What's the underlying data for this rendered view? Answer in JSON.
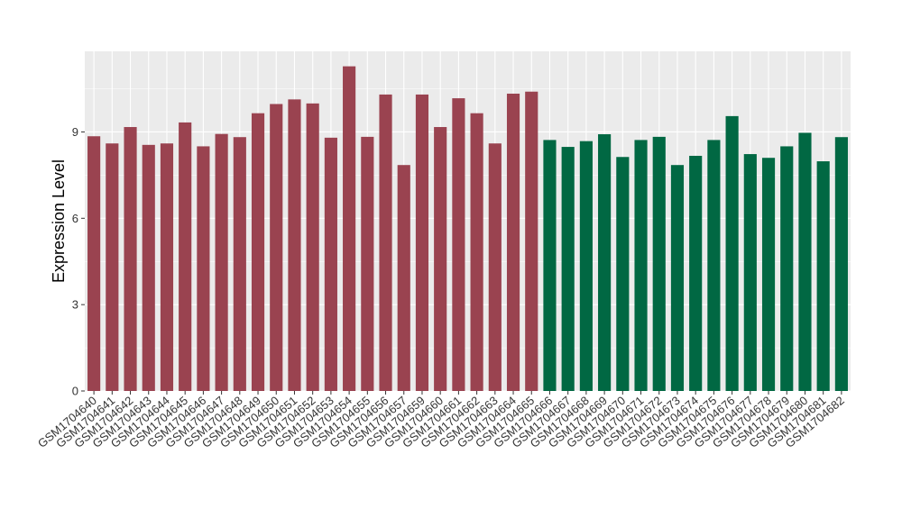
{
  "chart_data": {
    "type": "bar",
    "title": "",
    "xlabel": "",
    "ylabel": "Expression Level",
    "ylim": [
      0,
      11.8
    ],
    "yticks": [
      0,
      3,
      6,
      9
    ],
    "grid": true,
    "legend": "none",
    "colors": {
      "panel_background": "#ebebeb",
      "gridline": "#ffffff",
      "group_1": "#9a4350",
      "group_2": "#016843"
    },
    "categories": [
      "GSM1704640",
      "GSM1704641",
      "GSM1704642",
      "GSM1704643",
      "GSM1704644",
      "GSM1704645",
      "GSM1704646",
      "GSM1704647",
      "GSM1704648",
      "GSM1704649",
      "GSM1704650",
      "GSM1704651",
      "GSM1704652",
      "GSM1704653",
      "GSM1704654",
      "GSM1704655",
      "GSM1704656",
      "GSM1704657",
      "GSM1704659",
      "GSM1704660",
      "GSM1704661",
      "GSM1704662",
      "GSM1704663",
      "GSM1704664",
      "GSM1704665",
      "GSM1704666",
      "GSM1704667",
      "GSM1704668",
      "GSM1704669",
      "GSM1704670",
      "GSM1704671",
      "GSM1704672",
      "GSM1704673",
      "GSM1704674",
      "GSM1704675",
      "GSM1704676",
      "GSM1704677",
      "GSM1704678",
      "GSM1704679",
      "GSM1704680",
      "GSM1704681",
      "GSM1704682"
    ],
    "values": [
      8.85,
      8.6,
      9.17,
      8.55,
      8.6,
      9.33,
      8.5,
      8.93,
      8.82,
      9.65,
      9.97,
      10.13,
      9.99,
      8.8,
      11.28,
      8.83,
      10.3,
      7.85,
      10.3,
      9.17,
      10.17,
      9.65,
      8.6,
      10.33,
      10.4,
      8.72,
      8.48,
      8.68,
      8.92,
      8.13,
      8.72,
      8.83,
      7.85,
      8.17,
      8.72,
      9.55,
      8.23,
      8.1,
      8.5,
      8.97,
      7.98,
      8.82
    ],
    "groups": [
      1,
      1,
      1,
      1,
      1,
      1,
      1,
      1,
      1,
      1,
      1,
      1,
      1,
      1,
      1,
      1,
      1,
      1,
      1,
      1,
      1,
      1,
      1,
      1,
      1,
      2,
      2,
      2,
      2,
      2,
      2,
      2,
      2,
      2,
      2,
      2,
      2,
      2,
      2,
      2,
      2,
      2
    ]
  }
}
